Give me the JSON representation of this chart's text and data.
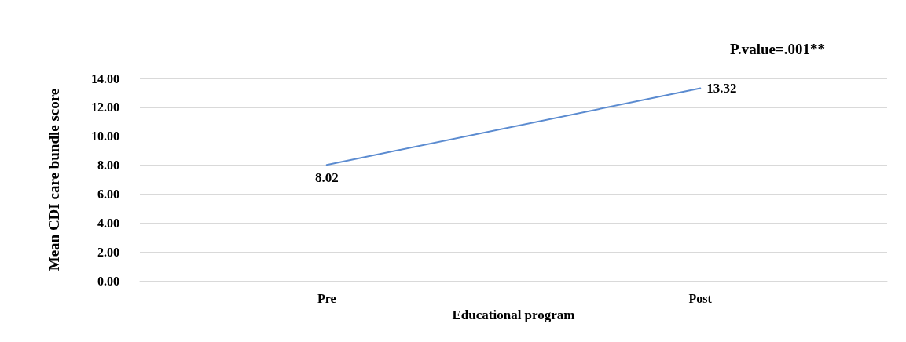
{
  "chart_data": {
    "type": "line",
    "xlabel": "Educational program",
    "ylabel": "Mean CDI care bundle score",
    "annotations": [
      "P.value=.001**"
    ],
    "categories": [
      "Pre",
      "Post"
    ],
    "series": [
      {
        "color": "#5b8bd0",
        "values": [
          8.02,
          13.32
        ]
      }
    ],
    "ylim": [
      0,
      14
    ],
    "yticks": [
      {
        "value": 0,
        "label": "0.00"
      },
      {
        "value": 2,
        "label": "2.00"
      },
      {
        "value": 4,
        "label": "4.00"
      },
      {
        "value": 6,
        "label": "6.00"
      },
      {
        "value": 8,
        "label": "8.00"
      },
      {
        "value": 10,
        "label": "10.00"
      },
      {
        "value": 12,
        "label": "12.00"
      },
      {
        "value": 14,
        "label": "14.00"
      }
    ],
    "grid": "y",
    "data_labels": true,
    "marker": "none",
    "line_style": "solid"
  }
}
